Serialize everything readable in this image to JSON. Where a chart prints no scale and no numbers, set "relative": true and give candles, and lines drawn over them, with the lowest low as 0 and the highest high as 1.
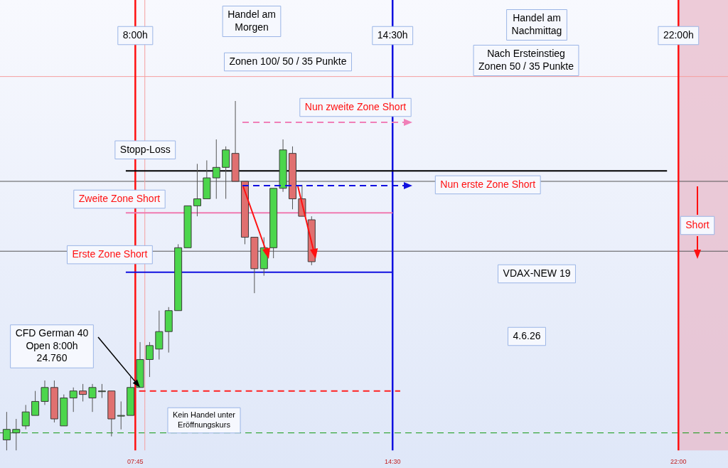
{
  "chart_data": {
    "type": "candlestick",
    "relative": true,
    "x": [
      4.375,
      4.625,
      4.875,
      5.125,
      5.375,
      5.625,
      5.875,
      6.125,
      6.375,
      6.625,
      6.875,
      7.125,
      7.375,
      7.625,
      7.875,
      8.125,
      8.375,
      8.625,
      8.875,
      9.125,
      9.375,
      9.625,
      9.875,
      10.125,
      10.375,
      10.625,
      10.875,
      11.125,
      11.375,
      11.625,
      11.875,
      12.125,
      12.375
    ],
    "ohlc": [
      [
        0.03,
        0.11,
        0,
        0.06
      ],
      [
        0.05,
        0.09,
        0,
        0.06
      ],
      [
        0.07,
        0.13,
        0.06,
        0.11
      ],
      [
        0.1,
        0.17,
        0.1,
        0.14
      ],
      [
        0.14,
        0.2,
        0.13,
        0.18
      ],
      [
        0.18,
        0.2,
        0.08,
        0.09
      ],
      [
        0.07,
        0.16,
        0.07,
        0.15
      ],
      [
        0.15,
        0.18,
        0.11,
        0.17
      ],
      [
        0.17,
        0.19,
        0.14,
        0.16
      ],
      [
        0.15,
        0.19,
        0.11,
        0.18
      ],
      [
        0.17,
        0.19,
        0.15,
        0.17
      ],
      [
        0.17,
        0.17,
        0.04,
        0.09
      ],
      [
        0.1,
        0.14,
        0.06,
        0.1
      ],
      [
        0.1,
        0.21,
        0.1,
        0.18
      ],
      [
        0.18,
        0.31,
        0.18,
        0.26
      ],
      [
        0.26,
        0.31,
        0.21,
        0.3
      ],
      [
        0.29,
        0.4,
        0.26,
        0.34
      ],
      [
        0.34,
        0.41,
        0.28,
        0.4
      ],
      [
        0.4,
        0.59,
        0.4,
        0.58
      ],
      [
        0.58,
        0.7,
        0.58,
        0.7
      ],
      [
        0.7,
        0.82,
        0.67,
        0.72
      ],
      [
        0.72,
        0.83,
        0.72,
        0.78
      ],
      [
        0.78,
        0.89,
        0.72,
        0.81
      ],
      [
        0.81,
        0.87,
        0.72,
        0.86
      ],
      [
        0.85,
        1,
        0.77,
        0.77
      ],
      [
        0.77,
        0.77,
        0.59,
        0.61
      ],
      [
        0.61,
        0.61,
        0.45,
        0.52
      ],
      [
        0.52,
        0.61,
        0.5,
        0.58
      ],
      [
        0.58,
        0.75,
        0.55,
        0.75
      ],
      [
        0.75,
        0.89,
        0.74,
        0.86
      ],
      [
        0.85,
        0.87,
        0.69,
        0.72
      ],
      [
        0.72,
        0.76,
        0.67,
        0.67
      ],
      [
        0.66,
        0.67,
        0.53,
        0.54
      ]
    ],
    "colors": [
      "#4cd64c",
      "#4cd64c",
      "#4cd64c",
      "#4cd64c",
      "#4cd64c",
      "#e07070",
      "#4cd64c",
      "#4cd64c",
      "#e07070",
      "#4cd64c",
      "#4cd64c",
      "#e07070",
      "#4cd64c",
      "#4cd64c",
      "#4cd64c",
      "#4cd64c",
      "#4cd64c",
      "#4cd64c",
      "#4cd64c",
      "#4cd64c",
      "#4cd64c",
      "#4cd64c",
      "#4cd64c",
      "#4cd64c",
      "#e07070",
      "#e07070",
      "#e07070",
      "#4cd64c",
      "#4cd64c",
      "#4cd64c",
      "#e07070",
      "#e07070",
      "#e07070"
    ],
    "xlim": [
      4.2,
      23.3
    ],
    "xticks": [
      {
        "value": 7.75,
        "label": "07:45"
      },
      {
        "value": 14.5,
        "label": "14:30"
      },
      {
        "value": 22,
        "label": "22:00"
      }
    ],
    "tick_labels": "x",
    "series": [
      {
        "type": "line",
        "x": [
          7.5,
          21.7
        ],
        "values": [
          0.8,
          0.8
        ],
        "color": "#000000",
        "line_style": "solid"
      },
      {
        "type": "line",
        "x": [
          7.5,
          14.5
        ],
        "values": [
          0.68,
          0.68
        ],
        "color": "#f07ab0",
        "line_style": "solid"
      },
      {
        "type": "line",
        "x": [
          7.5,
          14.5
        ],
        "values": [
          0.51,
          0.51
        ],
        "color": "#1010e0",
        "line_style": "solid"
      },
      {
        "type": "line",
        "x": [
          7.85,
          14.7
        ],
        "values": [
          0.17,
          0.17
        ],
        "color": "#ff2020",
        "line_style": "dashed"
      }
    ],
    "ref_lines": [
      {
        "axis": "y",
        "value": 0.05,
        "color": "#119911",
        "line_style": "dashed"
      },
      {
        "axis": "y",
        "value": 0.77,
        "color": "#555555",
        "line_style": "solid"
      },
      {
        "axis": "y",
        "value": 0.57,
        "color": "#555555",
        "line_style": "solid"
      },
      {
        "axis": "y",
        "value": 1.07,
        "color": "#f5a0a0",
        "line_style": "solid"
      },
      {
        "axis": "x",
        "value": 8.0,
        "color": "#f5a0a0",
        "line_style": "solid"
      },
      {
        "axis": "x",
        "value": 7.75,
        "label": "8:00h",
        "color": "#ff1010",
        "line_style": "solid"
      },
      {
        "axis": "x",
        "value": 14.5,
        "label": "14:30h",
        "color": "#1010e0",
        "line_style": "solid"
      },
      {
        "axis": "x",
        "value": 22,
        "label": "22:00h",
        "color": "#ff1010",
        "line_style": "solid"
      }
    ],
    "bands": [
      {
        "axis": "x",
        "from": 22,
        "to": 23.3,
        "color": "#e8b8c8"
      }
    ],
    "annotations": [
      "Handel am\nMorgen",
      "Zonen 100/ 50 / 35 Punkte",
      "Handel am\nNachmittag",
      "Nach Ersteinstieg\nZonen 50 / 35 Punkte",
      "Nun zweite Zone Short",
      {
        "text": "Stopp-Loss",
        "x": 8.01,
        "y": 0.86
      },
      {
        "text": "Nun erste Zone Short",
        "x": 17.0,
        "y": 0.76
      },
      "Zweite Zone Short",
      "Short",
      {
        "text": "Erste Zone Short",
        "x": 7.08,
        "y": 0.56
      },
      "VDAX-NEW 19",
      "4.6.26",
      {
        "text": "CFD German 40\nOpen 8:00h\n24.760",
        "x": 7.875,
        "y": 0.18
      },
      "Kein Handel unter\nEröffnungskurs"
    ]
  }
}
